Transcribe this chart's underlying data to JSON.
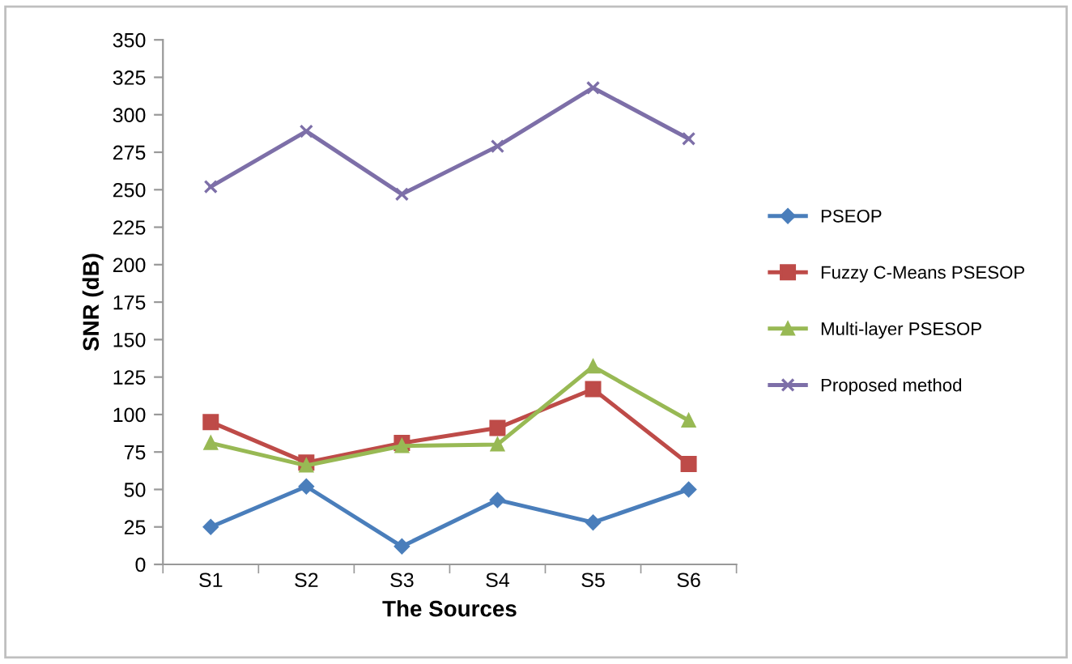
{
  "chart_data": {
    "type": "line",
    "xlabel": "The Sources",
    "ylabel": "SNR (dB)",
    "categories": [
      "S1",
      "S2",
      "S3",
      "S4",
      "S5",
      "S6"
    ],
    "ylim": [
      0,
      350
    ],
    "yticks": [
      0,
      25,
      50,
      75,
      100,
      125,
      150,
      175,
      200,
      225,
      250,
      275,
      300,
      325,
      350
    ],
    "grid": false,
    "legend": "right",
    "series": [
      {
        "name": "PSEOP",
        "color": "#4a7ebb",
        "marker": "diamond",
        "values": [
          25,
          52,
          12,
          43,
          28,
          50
        ]
      },
      {
        "name": "Fuzzy C-Means PSESOP",
        "color": "#be4b48",
        "marker": "square",
        "values": [
          95,
          68,
          81,
          91,
          117,
          67
        ]
      },
      {
        "name": "Multi-layer PSESOP",
        "color": "#98b954",
        "marker": "triangle",
        "values": [
          81,
          66,
          79,
          80,
          132,
          96
        ]
      },
      {
        "name": "Proposed method",
        "color": "#7d6fa8",
        "marker": "cross",
        "values": [
          252,
          289,
          247,
          279,
          318,
          284
        ]
      }
    ]
  }
}
